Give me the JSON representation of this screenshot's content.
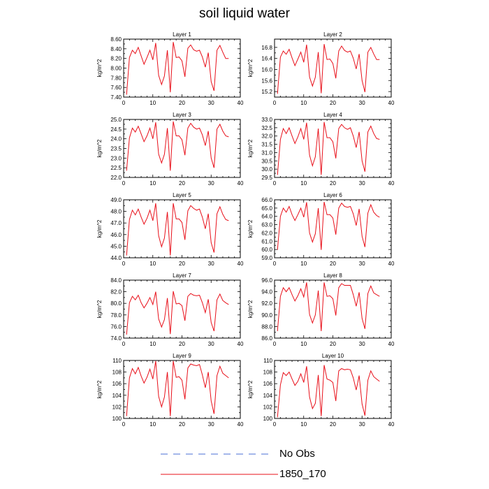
{
  "title": "soil liquid water",
  "legend": [
    {
      "label": "No Obs",
      "color": "#4a6fd6",
      "style": "dashed"
    },
    {
      "label": "1850_170",
      "color": "#e8101a",
      "style": "solid"
    }
  ],
  "chart_data": [
    {
      "type": "line",
      "title": "Layer 1",
      "ylabel": "kg/m^2",
      "xlim": [
        0,
        40
      ],
      "ylim": [
        7.4,
        8.6
      ],
      "xticks": [
        0,
        10,
        20,
        30,
        40
      ],
      "yticks": [
        7.4,
        7.6,
        7.8,
        8.0,
        8.2,
        8.4,
        8.6
      ],
      "yticklabels": [
        "7.40",
        "7.60",
        "7.80",
        "8.00",
        "8.20",
        "8.40",
        "8.60"
      ],
      "series": [
        {
          "color": "#e8101a",
          "x": [
            1,
            2,
            3,
            4,
            5,
            6,
            7,
            8,
            9,
            10,
            11,
            12,
            13,
            14,
            15,
            16,
            17,
            18,
            19,
            20,
            21,
            22,
            23,
            24,
            25,
            26,
            27,
            28,
            29,
            30,
            31,
            32,
            33,
            34,
            35,
            36
          ],
          "values": [
            7.45,
            8.22,
            8.37,
            8.3,
            8.43,
            8.25,
            8.08,
            8.22,
            8.37,
            8.17,
            8.52,
            7.85,
            7.66,
            7.84,
            8.37,
            7.5,
            8.54,
            8.22,
            8.23,
            8.15,
            7.82,
            8.41,
            8.48,
            8.38,
            8.35,
            8.37,
            8.23,
            8.02,
            8.32,
            7.72,
            7.53,
            8.37,
            8.47,
            8.33,
            8.2,
            8.2
          ]
        }
      ]
    },
    {
      "type": "line",
      "title": "Layer 2",
      "ylabel": "kg/m^2",
      "xlim": [
        0,
        40
      ],
      "ylim": [
        15.0,
        17.1
      ],
      "xticks": [
        0,
        10,
        20,
        30,
        40
      ],
      "yticks": [
        15.2,
        15.6,
        16.0,
        16.4,
        16.8
      ],
      "yticklabels": [
        "15.2",
        "15.6",
        "16.0",
        "16.4",
        "16.8"
      ],
      "series": [
        {
          "color": "#e8101a",
          "x": [
            1,
            2,
            3,
            4,
            5,
            6,
            7,
            8,
            9,
            10,
            11,
            12,
            13,
            14,
            15,
            16,
            17,
            18,
            19,
            20,
            21,
            22,
            23,
            24,
            25,
            26,
            27,
            28,
            29,
            30,
            31,
            32,
            33,
            34,
            35,
            36
          ],
          "values": [
            15.12,
            16.45,
            16.67,
            16.55,
            16.73,
            16.42,
            16.14,
            16.38,
            16.63,
            16.26,
            16.9,
            15.73,
            15.4,
            15.72,
            16.63,
            15.14,
            16.92,
            16.36,
            16.38,
            16.22,
            15.68,
            16.67,
            16.85,
            16.69,
            16.63,
            16.67,
            16.41,
            16.02,
            16.56,
            15.6,
            15.18,
            16.63,
            16.8,
            16.56,
            16.36,
            16.36
          ]
        }
      ]
    },
    {
      "type": "line",
      "title": "Layer 3",
      "ylabel": "kg/m^2",
      "xlim": [
        0,
        40
      ],
      "ylim": [
        22.0,
        25.0
      ],
      "xticks": [
        0,
        10,
        20,
        30,
        40
      ],
      "yticks": [
        22.0,
        22.5,
        23.0,
        23.5,
        24.0,
        24.5,
        25.0
      ],
      "yticklabels": [
        "22.0",
        "22.5",
        "23.0",
        "23.5",
        "24.0",
        "24.5",
        "25.0"
      ],
      "series": [
        {
          "color": "#e8101a",
          "x": [
            1,
            2,
            3,
            4,
            5,
            6,
            7,
            8,
            9,
            10,
            11,
            12,
            13,
            14,
            15,
            16,
            17,
            18,
            19,
            20,
            21,
            22,
            23,
            24,
            25,
            26,
            27,
            28,
            29,
            30,
            31,
            32,
            33,
            34,
            35,
            36
          ],
          "values": [
            22.35,
            24.05,
            24.55,
            24.35,
            24.65,
            24.25,
            23.85,
            24.15,
            24.55,
            24.0,
            24.85,
            23.2,
            22.75,
            23.2,
            24.55,
            22.35,
            24.9,
            24.15,
            24.15,
            23.95,
            23.15,
            24.55,
            24.8,
            24.6,
            24.5,
            24.55,
            24.2,
            23.65,
            24.4,
            23.0,
            22.5,
            24.5,
            24.75,
            24.4,
            24.15,
            24.1
          ]
        }
      ]
    },
    {
      "type": "line",
      "title": "Layer 4",
      "ylabel": "kg/m^2",
      "xlim": [
        0,
        40
      ],
      "ylim": [
        29.5,
        33.0
      ],
      "xticks": [
        0,
        10,
        20,
        30,
        40
      ],
      "yticks": [
        29.5,
        30.0,
        30.5,
        31.0,
        31.5,
        32.0,
        32.5,
        33.0
      ],
      "yticklabels": [
        "29.5",
        "30.0",
        "30.5",
        "31.0",
        "31.5",
        "32.0",
        "32.5",
        "33.0"
      ],
      "series": [
        {
          "color": "#e8101a",
          "x": [
            1,
            2,
            3,
            4,
            5,
            6,
            7,
            8,
            9,
            10,
            11,
            12,
            13,
            14,
            15,
            16,
            17,
            18,
            19,
            20,
            21,
            22,
            23,
            24,
            25,
            26,
            27,
            28,
            29,
            30,
            31,
            32,
            33,
            34,
            35,
            36
          ],
          "values": [
            29.65,
            31.8,
            32.45,
            32.15,
            32.5,
            32.0,
            31.55,
            31.95,
            32.45,
            31.8,
            32.8,
            30.85,
            30.2,
            30.75,
            32.45,
            29.65,
            32.85,
            31.9,
            31.9,
            31.65,
            30.65,
            32.45,
            32.7,
            32.5,
            32.4,
            32.5,
            32.0,
            31.3,
            32.25,
            30.5,
            29.85,
            32.25,
            32.6,
            32.15,
            31.85,
            31.8
          ]
        }
      ]
    },
    {
      "type": "line",
      "title": "Layer 5",
      "ylabel": "kg/m^2",
      "xlim": [
        0,
        40
      ],
      "ylim": [
        44.0,
        49.0
      ],
      "xticks": [
        0,
        10,
        20,
        30,
        40
      ],
      "yticks": [
        44.0,
        45.0,
        46.0,
        47.0,
        48.0,
        49.0
      ],
      "yticklabels": [
        "44.0",
        "45.0",
        "46.0",
        "47.0",
        "48.0",
        "49.0"
      ],
      "series": [
        {
          "color": "#e8101a",
          "x": [
            1,
            2,
            3,
            4,
            5,
            6,
            7,
            8,
            9,
            10,
            11,
            12,
            13,
            14,
            15,
            16,
            17,
            18,
            19,
            20,
            21,
            22,
            23,
            24,
            25,
            26,
            27,
            28,
            29,
            30,
            31,
            32,
            33,
            34,
            35,
            36
          ],
          "values": [
            44.2,
            47.3,
            48.1,
            47.7,
            48.2,
            47.5,
            46.9,
            47.4,
            48.1,
            47.2,
            48.7,
            45.9,
            44.95,
            45.7,
            47.95,
            44.2,
            48.7,
            47.35,
            47.35,
            47.05,
            45.55,
            48.05,
            48.5,
            48.25,
            48.1,
            48.2,
            47.5,
            46.5,
            47.8,
            45.3,
            44.45,
            47.8,
            48.4,
            47.75,
            47.3,
            47.2
          ]
        }
      ]
    },
    {
      "type": "line",
      "title": "Layer 6",
      "ylabel": "kg/m^2",
      "xlim": [
        0,
        40
      ],
      "ylim": [
        59.0,
        66.0
      ],
      "xticks": [
        0,
        10,
        20,
        30,
        40
      ],
      "yticks": [
        59.0,
        60.0,
        61.0,
        62.0,
        63.0,
        64.0,
        65.0,
        66.0
      ],
      "yticklabels": [
        "59.0",
        "60.0",
        "61.0",
        "62.0",
        "63.0",
        "64.0",
        "65.0",
        "66.0"
      ],
      "series": [
        {
          "color": "#e8101a",
          "x": [
            1,
            2,
            3,
            4,
            5,
            6,
            7,
            8,
            9,
            10,
            11,
            12,
            13,
            14,
            15,
            16,
            17,
            18,
            19,
            20,
            21,
            22,
            23,
            24,
            25,
            26,
            27,
            28,
            29,
            30,
            31,
            32,
            33,
            34,
            35,
            36
          ],
          "values": [
            59.95,
            64.0,
            65.0,
            64.5,
            65.2,
            64.2,
            63.5,
            64.2,
            65.0,
            63.9,
            65.7,
            62.0,
            60.9,
            61.9,
            65.0,
            59.95,
            65.75,
            64.2,
            64.2,
            63.8,
            61.8,
            65.0,
            65.6,
            65.2,
            65.1,
            65.2,
            64.3,
            62.9,
            64.9,
            61.6,
            60.3,
            64.4,
            65.4,
            64.5,
            64.1,
            63.9
          ]
        }
      ]
    },
    {
      "type": "line",
      "title": "Layer 7",
      "ylabel": "kg/m^2",
      "xlim": [
        0,
        40
      ],
      "ylim": [
        74.0,
        84.0
      ],
      "xticks": [
        0,
        10,
        20,
        30,
        40
      ],
      "yticks": [
        74.0,
        76.0,
        78.0,
        80.0,
        82.0,
        84.0
      ],
      "yticklabels": [
        "74.0",
        "76.0",
        "78.0",
        "80.0",
        "82.0",
        "84.0"
      ],
      "series": [
        {
          "color": "#e8101a",
          "x": [
            1,
            2,
            3,
            4,
            5,
            6,
            7,
            8,
            9,
            10,
            11,
            12,
            13,
            14,
            15,
            16,
            17,
            18,
            19,
            20,
            21,
            22,
            23,
            24,
            25,
            26,
            27,
            28,
            29,
            30,
            31,
            32,
            33,
            34,
            35,
            36
          ],
          "values": [
            74.6,
            80.1,
            81.2,
            80.6,
            81.4,
            80.1,
            79.2,
            80.0,
            81.0,
            79.8,
            82.0,
            77.3,
            75.9,
            77.2,
            80.9,
            74.7,
            82.1,
            79.9,
            80.0,
            79.6,
            77.0,
            81.2,
            81.7,
            81.4,
            81.3,
            81.4,
            80.1,
            78.4,
            80.7,
            76.7,
            75.2,
            80.6,
            81.6,
            80.5,
            80.1,
            79.8
          ]
        }
      ]
    },
    {
      "type": "line",
      "title": "Layer 8",
      "ylabel": "kg/m^2",
      "xlim": [
        0,
        40
      ],
      "ylim": [
        86.0,
        96.0
      ],
      "xticks": [
        0,
        10,
        20,
        30,
        40
      ],
      "yticks": [
        86.0,
        88.0,
        90.0,
        92.0,
        94.0,
        96.0
      ],
      "yticklabels": [
        "86.0",
        "88.0",
        "90.0",
        "92.0",
        "94.0",
        "96.0"
      ],
      "series": [
        {
          "color": "#e8101a",
          "x": [
            1,
            2,
            3,
            4,
            5,
            6,
            7,
            8,
            9,
            10,
            11,
            12,
            13,
            14,
            15,
            16,
            17,
            18,
            19,
            20,
            21,
            22,
            23,
            24,
            25,
            26,
            27,
            28,
            29,
            30,
            31,
            32,
            33,
            34,
            35,
            36
          ],
          "values": [
            87.2,
            93.2,
            94.7,
            94.0,
            94.7,
            93.5,
            92.4,
            93.3,
            94.5,
            93.1,
            95.6,
            90.1,
            88.6,
            90.0,
            94.2,
            87.2,
            95.6,
            93.2,
            93.3,
            92.8,
            89.9,
            94.7,
            95.4,
            95.1,
            95.1,
            95.1,
            93.5,
            91.5,
            93.9,
            89.4,
            87.6,
            93.7,
            95.0,
            93.8,
            93.5,
            93.2
          ]
        }
      ]
    },
    {
      "type": "line",
      "title": "Layer 9",
      "ylabel": "kg/m^2",
      "xlim": [
        0,
        40
      ],
      "ylim": [
        100,
        110
      ],
      "xticks": [
        0,
        10,
        20,
        30,
        40
      ],
      "yticks": [
        100,
        102,
        104,
        106,
        108,
        110
      ],
      "yticklabels": [
        "100",
        "102",
        "104",
        "106",
        "108",
        "110"
      ],
      "series": [
        {
          "color": "#e8101a",
          "x": [
            1,
            2,
            3,
            4,
            5,
            6,
            7,
            8,
            9,
            10,
            11,
            12,
            13,
            14,
            15,
            16,
            17,
            18,
            19,
            20,
            21,
            22,
            23,
            24,
            25,
            26,
            27,
            28,
            29,
            30,
            31,
            32,
            33,
            34,
            35,
            36
          ],
          "values": [
            100.4,
            107.0,
            108.6,
            107.7,
            108.8,
            107.3,
            106.1,
            107.1,
            108.5,
            106.8,
            109.9,
            103.8,
            102.0,
            103.7,
            108.0,
            100.4,
            109.9,
            107.1,
            107.2,
            106.6,
            103.3,
            108.7,
            109.4,
            109.2,
            109.1,
            109.3,
            107.5,
            105.3,
            108.0,
            103.0,
            100.8,
            107.4,
            109.0,
            107.8,
            107.4,
            107.0
          ]
        }
      ]
    },
    {
      "type": "line",
      "title": "Layer 10",
      "ylabel": "kg/m^2",
      "xlim": [
        0,
        40
      ],
      "ylim": [
        100,
        110
      ],
      "xticks": [
        0,
        10,
        20,
        30,
        40
      ],
      "yticks": [
        100,
        102,
        104,
        106,
        108,
        110
      ],
      "yticklabels": [
        "100",
        "102",
        "104",
        "106",
        "108",
        "110"
      ],
      "series": [
        {
          "color": "#e8101a",
          "x": [
            1,
            2,
            3,
            4,
            5,
            6,
            7,
            8,
            9,
            10,
            11,
            12,
            13,
            14,
            15,
            16,
            17,
            18,
            19,
            20,
            21,
            22,
            23,
            24,
            25,
            26,
            27,
            28,
            29,
            30,
            31,
            32,
            33,
            34,
            35,
            36
          ],
          "values": [
            100.2,
            105.8,
            107.9,
            107.4,
            108.0,
            106.8,
            105.7,
            106.4,
            107.7,
            106.2,
            109.0,
            103.7,
            101.7,
            102.6,
            107.5,
            100.4,
            109.2,
            106.8,
            106.6,
            106.2,
            103.0,
            108.2,
            108.6,
            108.4,
            108.5,
            108.4,
            107.0,
            104.9,
            107.4,
            102.5,
            100.5,
            106.6,
            108.2,
            107.2,
            106.8,
            106.4
          ]
        }
      ]
    }
  ]
}
